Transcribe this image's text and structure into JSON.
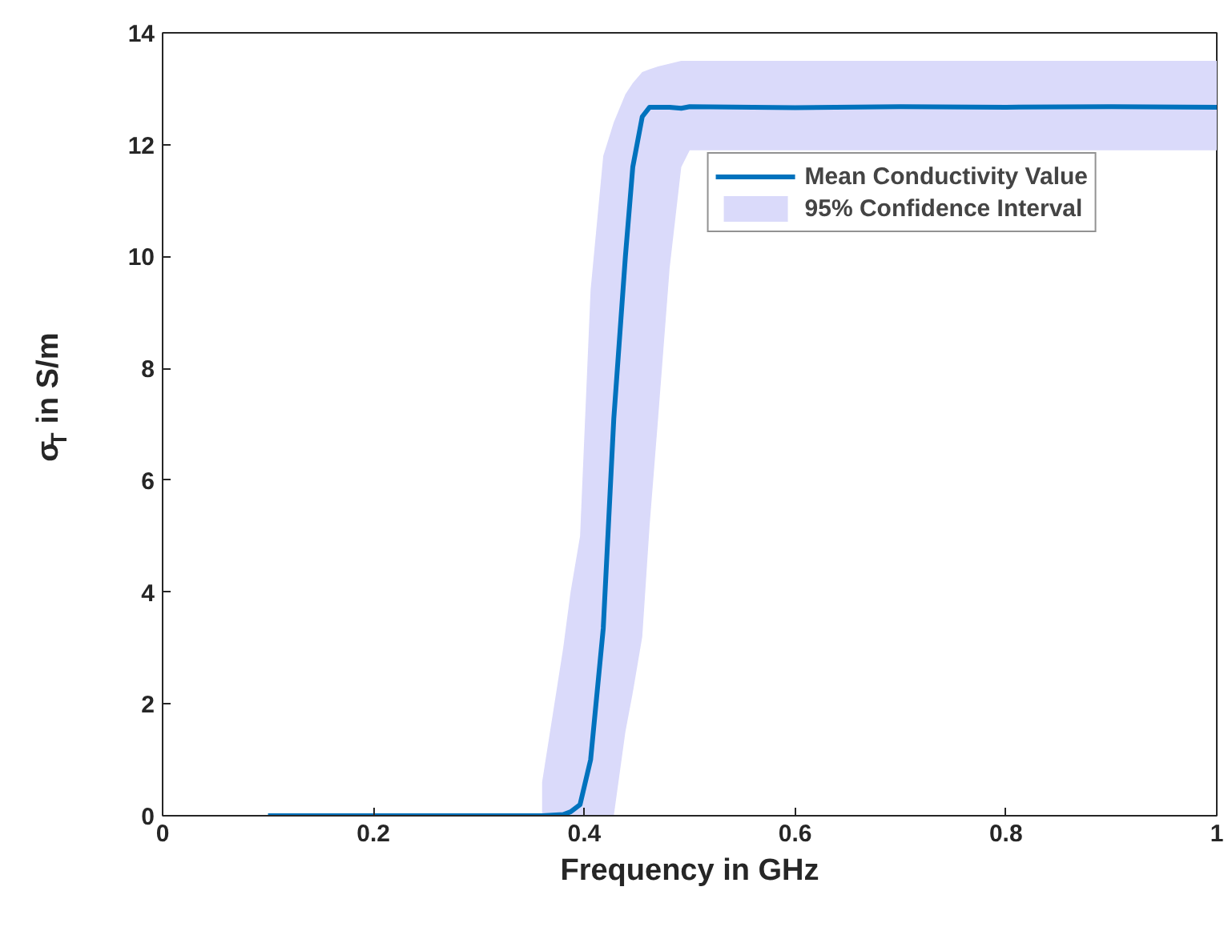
{
  "chart_data": {
    "type": "line",
    "xlabel": "Frequency in GHz",
    "ylabel": "σ$_{T}$ in S/m",
    "xlim": [
      0,
      1
    ],
    "ylim": [
      0,
      14
    ],
    "xticks": [
      0,
      0.2,
      0.4,
      0.6,
      0.8,
      1
    ],
    "yticks": [
      0,
      2,
      4,
      6,
      8,
      10,
      12,
      14
    ],
    "x": [
      0.1,
      0.2,
      0.3,
      0.36,
      0.38,
      0.387,
      0.396,
      0.406,
      0.418,
      0.428,
      0.439,
      0.446,
      0.455,
      0.462,
      0.47,
      0.481,
      0.492,
      0.5,
      0.6,
      0.7,
      0.8,
      0.9,
      1.0
    ],
    "series": [
      {
        "name": "Mean Conductivity Value",
        "color": "#0072bd",
        "values": [
          0,
          0,
          0,
          0,
          0.02,
          0.07,
          0.2,
          1.0,
          3.35,
          7.1,
          10.0,
          11.6,
          12.5,
          12.67,
          12.67,
          12.67,
          12.65,
          12.68,
          12.66,
          12.68,
          12.67,
          12.68,
          12.67
        ]
      },
      {
        "name": "95% Confidence Interval",
        "type": "area",
        "color": "#dadafa",
        "values": [
          null,
          null,
          null,
          null,
          null,
          null,
          null,
          null,
          null,
          null,
          null,
          null,
          null,
          null,
          null,
          null,
          null,
          null,
          null,
          null,
          null,
          null,
          null
        ],
        "lower": [
          null,
          null,
          null,
          0,
          0,
          0,
          0,
          0,
          0,
          0,
          1.5,
          2.2,
          3.2,
          5.2,
          7.1,
          9.8,
          11.6,
          11.9,
          11.9,
          11.9,
          11.9,
          11.9,
          11.9
        ],
        "upper": [
          null,
          null,
          null,
          0.6,
          3.0,
          4.0,
          5.0,
          9.4,
          11.8,
          12.4,
          12.9,
          13.1,
          13.3,
          13.35,
          13.4,
          13.45,
          13.5,
          13.5,
          13.5,
          13.5,
          13.5,
          13.5,
          13.5
        ]
      }
    ],
    "legend": "top right",
    "grid": false
  }
}
